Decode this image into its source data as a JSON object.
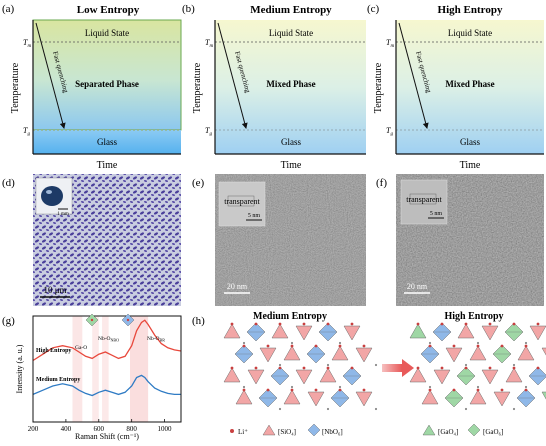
{
  "panels": {
    "a": {
      "letter": "(a)",
      "title": "Low Entropy",
      "state": "Liquid State",
      "phase": "Separated Phase",
      "glass": "Glass",
      "quench": "Fast quenching"
    },
    "b": {
      "letter": "(b)",
      "title": "Medium Entropy",
      "state": "Liquid State",
      "phase": "Mixed Phase",
      "glass": "Glass",
      "quench": "Fast quenching"
    },
    "c": {
      "letter": "(c)",
      "title": "High Entropy",
      "state": "Liquid State",
      "phase": "Mixed Phase",
      "glass": "Glass",
      "quench": "Fast quenching"
    },
    "d": {
      "letter": "(d)",
      "inset_scale": "1 mm",
      "scale": "10 μm"
    },
    "e": {
      "letter": "(e)",
      "inset_label": "transparent",
      "inset_scale": "5 nm",
      "scale": "20 nm"
    },
    "f": {
      "letter": "(f)",
      "inset_label": "transparent",
      "inset_scale": "5 nm",
      "scale": "20 nm"
    },
    "g": {
      "letter": "(g)"
    },
    "h": {
      "letter": "(h)",
      "title_left": "Medium Entropy",
      "title_right": "High Entropy",
      "legend": [
        "Li⁺",
        "[SiO₄]",
        "[NbO₆]",
        "[GaO₄]",
        "[GaO₆]"
      ]
    }
  },
  "axes": {
    "temperature": "Temperature",
    "time": "Time",
    "tm": "T",
    "tm_sub": "m",
    "tg": "T",
    "tg_sub": "g"
  },
  "chart_data": {
    "type": "line",
    "xlabel": "Raman Shift (cm⁻¹)",
    "ylabel": "Intensity (a. u.)",
    "xlim": [
      200,
      1100
    ],
    "xticks": [
      200,
      400,
      600,
      800,
      1000
    ],
    "series": [
      {
        "name": "High Entropy",
        "color": "#e8483c",
        "x": [
          200,
          260,
          320,
          380,
          440,
          480,
          520,
          560,
          600,
          640,
          680,
          720,
          760,
          800,
          830,
          860,
          880,
          900,
          940,
          980,
          1020,
          1060,
          1100
        ],
        "y": [
          0.58,
          0.64,
          0.7,
          0.72,
          0.7,
          0.66,
          0.62,
          0.6,
          0.64,
          0.66,
          0.63,
          0.6,
          0.62,
          0.72,
          0.86,
          0.94,
          0.96,
          0.92,
          0.82,
          0.74,
          0.7,
          0.68,
          0.67
        ]
      },
      {
        "name": "Medium Entropy",
        "color": "#2f7bc4",
        "x": [
          200,
          260,
          320,
          380,
          440,
          480,
          520,
          560,
          600,
          640,
          680,
          720,
          760,
          800,
          830,
          860,
          880,
          900,
          940,
          980,
          1020,
          1060,
          1100
        ],
        "y": [
          0.26,
          0.3,
          0.34,
          0.36,
          0.34,
          0.3,
          0.27,
          0.25,
          0.28,
          0.3,
          0.28,
          0.26,
          0.28,
          0.34,
          0.42,
          0.44,
          0.42,
          0.38,
          0.32,
          0.29,
          0.27,
          0.26,
          0.26
        ]
      }
    ],
    "annotations": [
      "Ga-O",
      "Nb-O",
      "Nb-O",
      "NB",
      "NBO",
      "BR"
    ]
  }
}
